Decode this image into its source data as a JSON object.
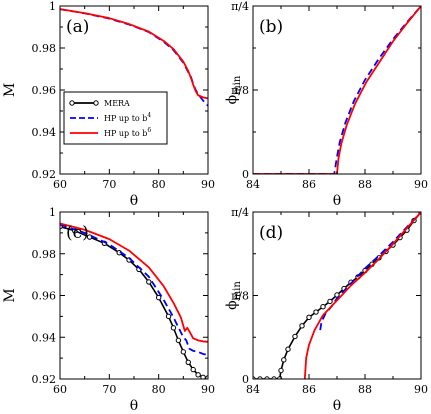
{
  "legend": {
    "entries": [
      {
        "label": "MERA",
        "superscript": "",
        "color": "#000000",
        "style": "solid-circles"
      },
      {
        "label": "HP up to b",
        "superscript": "4",
        "color": "#0000ff",
        "style": "dashed"
      },
      {
        "label": "HP up to b",
        "superscript": "6",
        "color": "#ff0000",
        "style": "solid"
      }
    ]
  },
  "chart_data": [
    {
      "type": "line",
      "panel_label": "(a)",
      "xlabel": "θ",
      "ylabel": "M",
      "xlim": [
        60,
        90
      ],
      "ylim": [
        0.92,
        1.0
      ],
      "xticks": [
        60,
        70,
        80,
        90
      ],
      "yticks": [
        0.92,
        0.94,
        0.96,
        0.98,
        1
      ],
      "yticklabels": [
        "0.92",
        "0.94",
        "0.96",
        "0.98",
        "1"
      ],
      "series": [
        {
          "name": "HP up to b^4",
          "color": "#0000ff",
          "style": "dashed",
          "x": [
            60,
            65,
            70,
            74,
            78,
            81,
            83,
            85,
            86,
            86.5,
            87,
            87.5,
            88,
            89,
            90
          ],
          "y": [
            0.9985,
            0.9965,
            0.994,
            0.9912,
            0.9876,
            0.983,
            0.979,
            0.973,
            0.9685,
            0.9665,
            0.963,
            0.96,
            0.958,
            0.955,
            0.9525
          ]
        },
        {
          "name": "HP up to b^6",
          "color": "#ff0000",
          "style": "solid",
          "x": [
            60,
            65,
            70,
            74,
            78,
            81,
            83,
            85,
            86,
            86.5,
            87,
            87.5,
            88,
            89,
            90
          ],
          "y": [
            0.9985,
            0.9966,
            0.9942,
            0.9914,
            0.9878,
            0.9834,
            0.9795,
            0.9735,
            0.969,
            0.966,
            0.9625,
            0.9595,
            0.9575,
            0.9565,
            0.956
          ]
        }
      ]
    },
    {
      "type": "line",
      "panel_label": "(b)",
      "xlabel": "θ",
      "ylabel": "ϕmin",
      "xlim": [
        84,
        90
      ],
      "ylim": [
        0,
        0.7854
      ],
      "xticks": [
        84,
        86,
        88,
        90
      ],
      "yticks": [
        0,
        0.3927,
        0.7854
      ],
      "yticklabels": [
        "0",
        "π/8",
        "π/4"
      ],
      "series": [
        {
          "name": "HP up to b^4",
          "color": "#0000ff",
          "style": "dashed",
          "x": [
            84,
            86.9,
            87.0,
            87.1,
            87.3,
            87.6,
            88.0,
            88.5,
            89.0,
            89.5,
            90
          ],
          "y": [
            0,
            0,
            0.08,
            0.15,
            0.24,
            0.34,
            0.44,
            0.54,
            0.63,
            0.71,
            0.785
          ]
        },
        {
          "name": "HP up to b^6",
          "color": "#ff0000",
          "style": "solid",
          "x": [
            84,
            87.0,
            87.05,
            87.15,
            87.35,
            87.65,
            88.05,
            88.55,
            89.0,
            89.5,
            90
          ],
          "y": [
            0,
            0,
            0.07,
            0.14,
            0.23,
            0.33,
            0.43,
            0.53,
            0.62,
            0.705,
            0.785
          ]
        }
      ]
    },
    {
      "type": "line",
      "panel_label": "(c)",
      "xlabel": "θ",
      "ylabel": "M",
      "xlim": [
        60,
        90
      ],
      "ylim": [
        0.92,
        1.0
      ],
      "xticks": [
        60,
        70,
        80,
        90
      ],
      "yticks": [
        0.92,
        0.94,
        0.96,
        0.98,
        1
      ],
      "yticklabels": [
        "0.92",
        "0.94",
        "0.96",
        "0.98",
        "1"
      ],
      "series": [
        {
          "name": "MERA",
          "color": "#000000",
          "style": "solid-circles",
          "x": [
            60,
            63,
            66,
            69,
            72,
            74,
            76,
            78,
            80,
            82,
            83,
            84,
            85,
            86,
            87,
            88,
            89,
            90
          ],
          "y": [
            0.993,
            0.991,
            0.988,
            0.985,
            0.9805,
            0.977,
            0.9725,
            0.9665,
            0.959,
            0.95,
            0.9445,
            0.9385,
            0.933,
            0.928,
            0.9245,
            0.922,
            0.9208,
            0.9205
          ]
        },
        {
          "name": "HP up to b^4",
          "color": "#0000ff",
          "style": "dashed",
          "x": [
            60,
            65,
            70,
            74,
            78,
            81,
            83,
            85,
            85.6,
            86.2,
            87,
            88,
            89,
            90
          ],
          "y": [
            0.994,
            0.99,
            0.9845,
            0.978,
            0.969,
            0.958,
            0.9495,
            0.94,
            0.9385,
            0.9345,
            0.9335,
            0.933,
            0.932,
            0.9315
          ]
        },
        {
          "name": "HP up to b^6",
          "color": "#ff0000",
          "style": "solid",
          "x": [
            60,
            65,
            70,
            74,
            78,
            81,
            83,
            84.5,
            85.3,
            85.8,
            86.3,
            87,
            88,
            89,
            90
          ],
          "y": [
            0.9945,
            0.9915,
            0.987,
            0.9815,
            0.9735,
            0.9645,
            0.9565,
            0.9495,
            0.943,
            0.9445,
            0.9425,
            0.9395,
            0.9385,
            0.938,
            0.9378
          ]
        }
      ]
    },
    {
      "type": "line",
      "panel_label": "(d)",
      "xlabel": "θ",
      "ylabel": "ϕmin",
      "xlim": [
        84,
        90
      ],
      "ylim": [
        0,
        0.7854
      ],
      "xticks": [
        84,
        86,
        88,
        90
      ],
      "yticks": [
        0,
        0.3927,
        0.7854
      ],
      "yticklabels": [
        "0",
        "π/8",
        "π/4"
      ],
      "series": [
        {
          "name": "MERA",
          "color": "#000000",
          "style": "solid-circles",
          "x": [
            84,
            84.25,
            84.5,
            84.75,
            84.95,
            85.0,
            85.1,
            85.25,
            85.5,
            85.75,
            86.0,
            86.25,
            86.5,
            86.75,
            87.0,
            87.25,
            87.5,
            87.75,
            88.0,
            88.25,
            88.5,
            88.75,
            89.0,
            89.25,
            89.5,
            89.75,
            90
          ],
          "y": [
            0,
            0,
            0,
            0,
            0,
            0.04,
            0.09,
            0.14,
            0.2,
            0.25,
            0.29,
            0.315,
            0.34,
            0.365,
            0.395,
            0.425,
            0.455,
            0.48,
            0.51,
            0.54,
            0.57,
            0.6,
            0.63,
            0.665,
            0.7,
            0.745,
            0.785
          ]
        },
        {
          "name": "HP up to b^4",
          "color": "#0000ff",
          "style": "dashed",
          "x": [
            86.4,
            86.45,
            86.6,
            86.8,
            87.0,
            87.5,
            88.0,
            88.5,
            89.0,
            89.5,
            90
          ],
          "y": [
            0.23,
            0.27,
            0.31,
            0.34,
            0.38,
            0.45,
            0.52,
            0.58,
            0.645,
            0.715,
            0.785
          ]
        },
        {
          "name": "HP up to b^6",
          "color": "#ff0000",
          "style": "solid",
          "x": [
            85.85,
            85.9,
            86.0,
            86.2,
            86.5,
            87.0,
            87.5,
            88.0,
            88.5,
            89.0,
            89.5,
            90
          ],
          "y": [
            0,
            0.1,
            0.16,
            0.23,
            0.3,
            0.37,
            0.44,
            0.5,
            0.565,
            0.635,
            0.71,
            0.785
          ]
        }
      ]
    }
  ]
}
